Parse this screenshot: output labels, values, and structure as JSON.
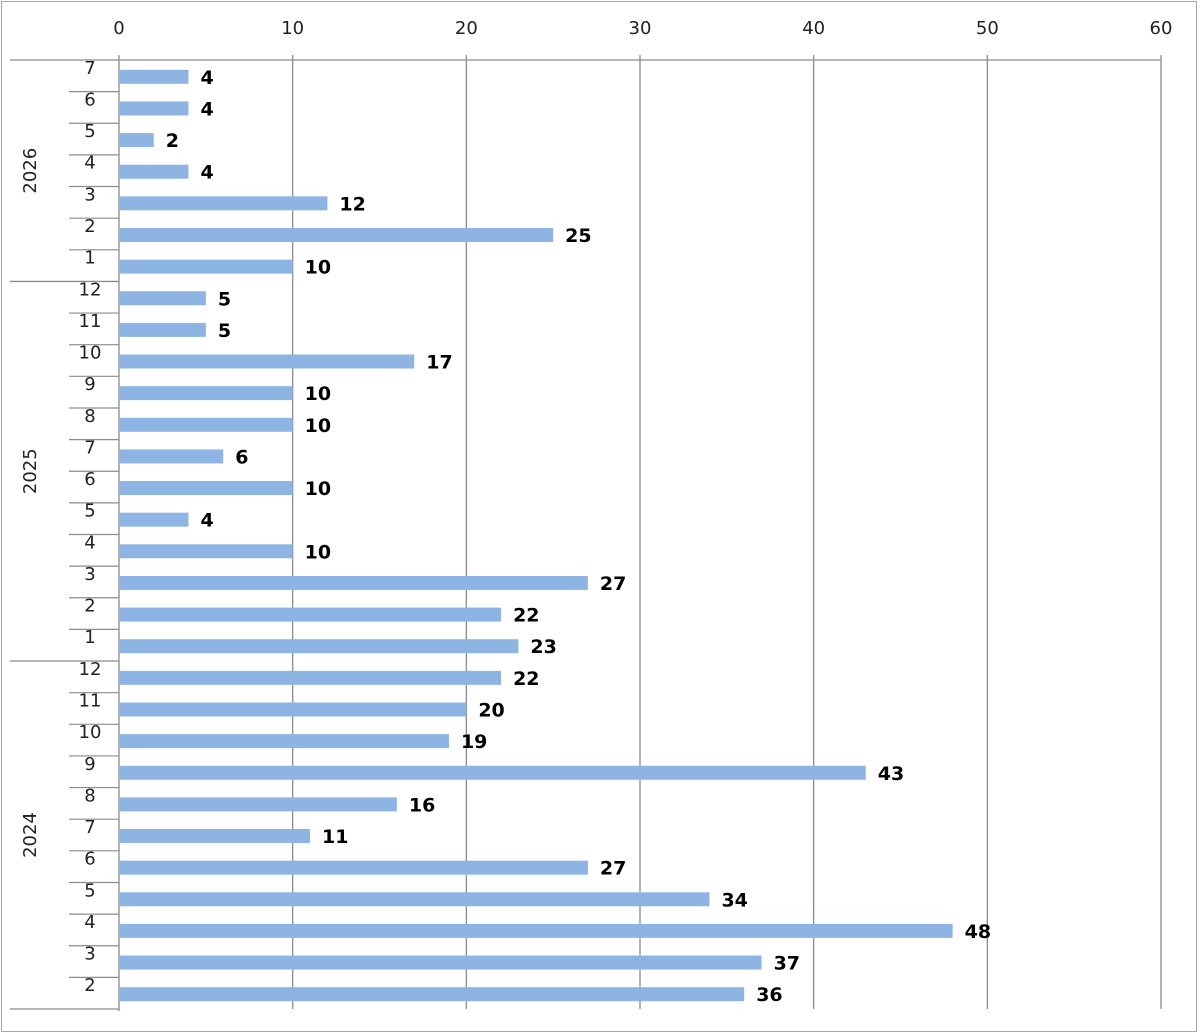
{
  "chart_data": {
    "type": "bar",
    "orientation": "horizontal",
    "title": "",
    "xlabel": "",
    "ylabel": "",
    "xlim": [
      0,
      60
    ],
    "x_ticks": [
      0,
      10,
      20,
      30,
      40,
      50,
      60
    ],
    "x_axis_position": "top",
    "grid": "vertical",
    "legend": "none",
    "bar_color": "#8eb4e3",
    "groups": [
      {
        "label": "2026",
        "months": [
          "7",
          "6",
          "5",
          "4",
          "3",
          "2",
          "1"
        ],
        "values": [
          4,
          4,
          2,
          4,
          12,
          25,
          10
        ]
      },
      {
        "label": "2025",
        "months": [
          "12",
          "11",
          "10",
          "9",
          "8",
          "7",
          "6",
          "5",
          "4",
          "3",
          "2",
          "1"
        ],
        "values": [
          5,
          5,
          17,
          10,
          10,
          6,
          10,
          4,
          10,
          27,
          22,
          23
        ]
      },
      {
        "label": "2024",
        "months": [
          "12",
          "11",
          "10",
          "9",
          "8",
          "7",
          "6",
          "5",
          "4",
          "3",
          "2"
        ],
        "values": [
          22,
          20,
          19,
          43,
          16,
          11,
          27,
          34,
          48,
          37,
          36
        ]
      }
    ]
  }
}
